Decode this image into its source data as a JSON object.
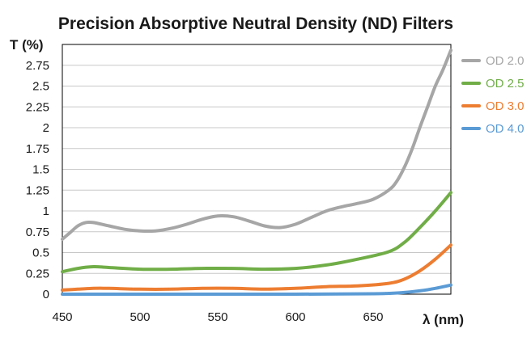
{
  "chart_data": {
    "type": "line",
    "title": "Precision Absorptive Neutral Density (ND) Filters",
    "xlabel": "λ (nm)",
    "ylabel": "T (%)",
    "xlim": [
      450,
      700
    ],
    "ylim": [
      0,
      3
    ],
    "x_ticks": [
      "450",
      "500",
      "550",
      "600",
      "650"
    ],
    "y_ticks": [
      "0",
      "0.25",
      "0.5",
      "0.75",
      "1",
      "1.25",
      "1.5",
      "1.75",
      "2",
      "2.25",
      "2.5",
      "2.75"
    ],
    "grid": "horizontal",
    "legend_position": "right",
    "series": [
      {
        "name": "OD 2.0",
        "color": "#a6a6a6",
        "x": [
          450,
          455,
          460,
          465,
          470,
          480,
          490,
          500,
          510,
          520,
          530,
          540,
          550,
          560,
          570,
          580,
          590,
          600,
          610,
          620,
          630,
          640,
          650,
          660,
          665,
          670,
          675,
          680,
          685,
          690,
          695,
          700
        ],
        "y": [
          0.66,
          0.74,
          0.82,
          0.86,
          0.86,
          0.82,
          0.78,
          0.76,
          0.76,
          0.79,
          0.84,
          0.9,
          0.94,
          0.93,
          0.88,
          0.82,
          0.8,
          0.84,
          0.92,
          1.0,
          1.05,
          1.09,
          1.14,
          1.25,
          1.35,
          1.52,
          1.74,
          2.0,
          2.25,
          2.5,
          2.7,
          2.93
        ]
      },
      {
        "name": "OD 2.5",
        "color": "#70ad47",
        "x": [
          450,
          460,
          470,
          480,
          500,
          520,
          540,
          560,
          580,
          600,
          620,
          640,
          660,
          670,
          680,
          690,
          700
        ],
        "y": [
          0.27,
          0.31,
          0.33,
          0.32,
          0.3,
          0.3,
          0.31,
          0.31,
          0.3,
          0.31,
          0.35,
          0.42,
          0.51,
          0.62,
          0.8,
          1.0,
          1.22
        ]
      },
      {
        "name": "OD 3.0",
        "color": "#ed7d31",
        "x": [
          450,
          460,
          470,
          480,
          500,
          520,
          540,
          560,
          580,
          600,
          620,
          640,
          660,
          670,
          680,
          690,
          700
        ],
        "y": [
          0.05,
          0.06,
          0.07,
          0.07,
          0.06,
          0.06,
          0.07,
          0.07,
          0.06,
          0.07,
          0.09,
          0.1,
          0.13,
          0.18,
          0.28,
          0.42,
          0.59
        ]
      },
      {
        "name": "OD 4.0",
        "color": "#5b9bd5",
        "x": [
          450,
          500,
          550,
          600,
          650,
          660,
          670,
          680,
          690,
          700
        ],
        "y": [
          0.0,
          0.0,
          0.0,
          0.0,
          0.005,
          0.01,
          0.02,
          0.04,
          0.07,
          0.11
        ]
      }
    ]
  }
}
